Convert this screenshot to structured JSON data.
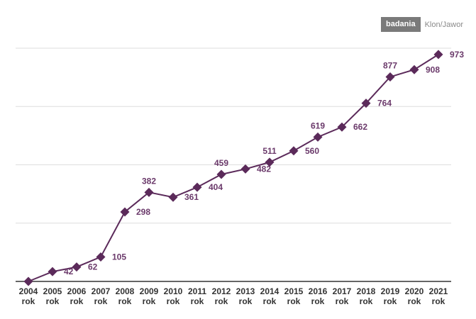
{
  "brand": {
    "tag": "badania",
    "source": "Klon/Jawor"
  },
  "colors": {
    "series": "#5b2a5a",
    "label": "#6b3a6b",
    "grid": "#dddddd",
    "axis": "#333333"
  },
  "chart_data": {
    "type": "line",
    "title": "",
    "xlabel": "",
    "ylabel": "",
    "x": [
      "2004",
      "2005",
      "2006",
      "2007",
      "2008",
      "2009",
      "2010",
      "2011",
      "2012",
      "2013",
      "2014",
      "2015",
      "2016",
      "2017",
      "2018",
      "2019",
      "2020",
      "2021"
    ],
    "x_suffix": "rok",
    "values": [
      0,
      42,
      62,
      105,
      298,
      382,
      361,
      404,
      459,
      482,
      511,
      560,
      619,
      662,
      764,
      877,
      908,
      973
    ],
    "data_labels": [
      "",
      "42",
      "62",
      "105",
      "298",
      "382",
      "361",
      "404",
      "459",
      "482",
      "511",
      "560",
      "619",
      "662",
      "764",
      "877",
      "908",
      "973"
    ],
    "ylim": [
      0,
      1000
    ],
    "grid": true,
    "marker": "diamond"
  }
}
